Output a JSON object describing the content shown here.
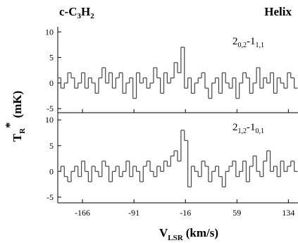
{
  "chart_data": [
    {
      "type": "step",
      "title_parts": [
        "c-C",
        "3",
        "H",
        "2"
      ],
      "annotation": "Helix",
      "ylabel_parts": [
        "T",
        "R",
        "*",
        "(mK)"
      ],
      "label_parts": [
        "2",
        "0,2",
        "-1",
        "1,1"
      ],
      "xlim": [
        -202,
        148
      ],
      "xticks": [
        -166,
        -91,
        -16,
        59,
        134
      ],
      "ylim": [
        -5.8,
        11
      ],
      "yticks": [
        -5,
        0,
        5,
        10
      ],
      "x": [
        -200,
        -195,
        -190,
        -185,
        -180,
        -175,
        -170,
        -165,
        -160,
        -155,
        -150,
        -145,
        -140,
        -135,
        -130,
        -125,
        -120,
        -115,
        -110,
        -105,
        -100,
        -95,
        -90,
        -85,
        -80,
        -75,
        -70,
        -65,
        -60,
        -55,
        -50,
        -45,
        -40,
        -35,
        -30,
        -25,
        -20,
        -15,
        -10,
        -5,
        0,
        5,
        10,
        15,
        20,
        25,
        30,
        35,
        40,
        45,
        50,
        55,
        60,
        65,
        70,
        75,
        80,
        85,
        90,
        95,
        100,
        105,
        110,
        115,
        120,
        125,
        130,
        135,
        140,
        145
      ],
      "series": [
        {
          "color": "#444444",
          "values": [
            1,
            -1,
            0,
            2,
            1,
            -1,
            0,
            2,
            -1,
            1,
            0,
            -2,
            1,
            3,
            0,
            2,
            -1,
            1,
            2,
            -2,
            0,
            1,
            -3,
            2,
            0,
            1,
            -1,
            0,
            3,
            1,
            -2,
            2,
            0,
            1,
            4,
            2,
            7,
            -1,
            1,
            -2,
            0,
            1,
            2,
            -1,
            -3,
            0,
            1,
            -2,
            2,
            0,
            -1,
            1,
            -3,
            0,
            2,
            1,
            -2,
            0,
            3,
            -1,
            1,
            0,
            2,
            -2,
            1,
            0,
            -1,
            2,
            1,
            -1
          ]
        }
      ]
    },
    {
      "type": "step",
      "xlabel_parts": [
        "V",
        "LSR",
        "(km/s)"
      ],
      "label_parts": [
        "2",
        "1,2",
        "-1",
        "0,1"
      ],
      "xlim": [
        -202,
        148
      ],
      "xticks": [
        -166,
        -91,
        -16,
        59,
        134
      ],
      "ylim": [
        -6.1,
        11.4
      ],
      "yticks": [
        -5,
        0,
        5,
        10
      ],
      "x": [
        -200,
        -195,
        -190,
        -185,
        -180,
        -175,
        -170,
        -165,
        -160,
        -155,
        -150,
        -145,
        -140,
        -135,
        -130,
        -125,
        -120,
        -115,
        -110,
        -105,
        -100,
        -95,
        -90,
        -85,
        -80,
        -75,
        -70,
        -65,
        -60,
        -55,
        -50,
        -45,
        -40,
        -35,
        -30,
        -25,
        -20,
        -15,
        -10,
        -5,
        0,
        5,
        10,
        15,
        20,
        25,
        30,
        35,
        40,
        45,
        50,
        55,
        60,
        65,
        70,
        75,
        80,
        85,
        90,
        95,
        100,
        105,
        110,
        115,
        120,
        125,
        130,
        135,
        140,
        145
      ],
      "series": [
        {
          "color": "#444444",
          "values": [
            0,
            1,
            -1,
            -2,
            0,
            1,
            -1,
            2,
            0,
            -2,
            1,
            0,
            -1,
            2,
            1,
            -2,
            0,
            1,
            -1,
            0,
            2,
            -1,
            1,
            0,
            -2,
            1,
            2,
            0,
            -1,
            1,
            0,
            2,
            1,
            3,
            4,
            2,
            8,
            6,
            -3,
            1,
            0,
            -1,
            2,
            1,
            -2,
            0,
            1,
            -1,
            -3,
            0,
            1,
            2,
            -1,
            0,
            2,
            -2,
            1,
            3,
            0,
            -1,
            2,
            4,
            0,
            1,
            -1,
            2,
            0,
            1,
            2,
            0
          ]
        }
      ]
    }
  ]
}
